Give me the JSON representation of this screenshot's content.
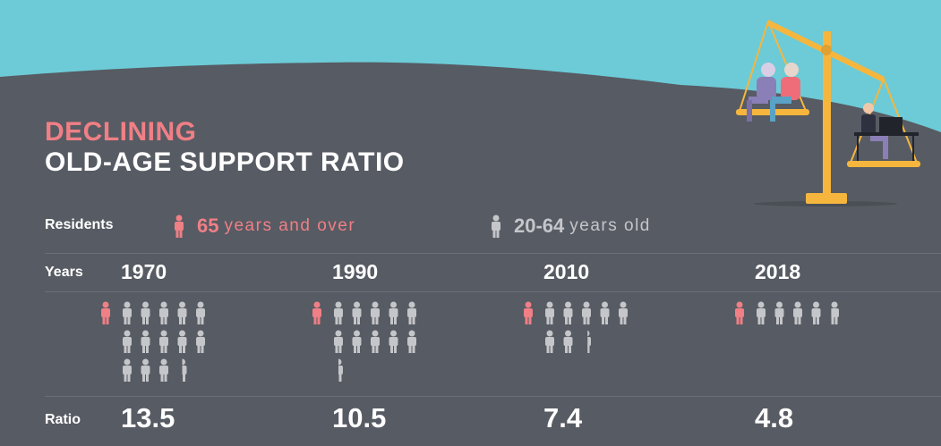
{
  "title": {
    "line1": "DECLINING",
    "line2": "OLD-AGE SUPPORT RATIO"
  },
  "legend": {
    "residents_label": "Residents",
    "older": {
      "number": "65",
      "text": "years and over",
      "color": "#f07f86",
      "icon": "person-icon"
    },
    "working": {
      "number": "20-64",
      "text": "years old",
      "color": "#c4c6ca",
      "icon": "person-icon"
    }
  },
  "row_labels": {
    "years": "Years",
    "ratio": "Ratio"
  },
  "colors": {
    "sky": "#6ccbd7",
    "background": "#575b63",
    "accent_pink": "#f07f86",
    "gray_person": "#c4c6ca",
    "scale": "#f6b63d"
  },
  "illustration": {
    "name": "balance-scale-illustration",
    "content": "two seniors outweighing one worker at a desk"
  },
  "chart_data": {
    "type": "pictogram",
    "categories": [
      "1970",
      "1990",
      "2010",
      "2018"
    ],
    "values": [
      13.5,
      10.5,
      7.4,
      4.8
    ],
    "value_labels": [
      "13.5",
      "10.5",
      "7.4",
      "4.8"
    ]
  }
}
